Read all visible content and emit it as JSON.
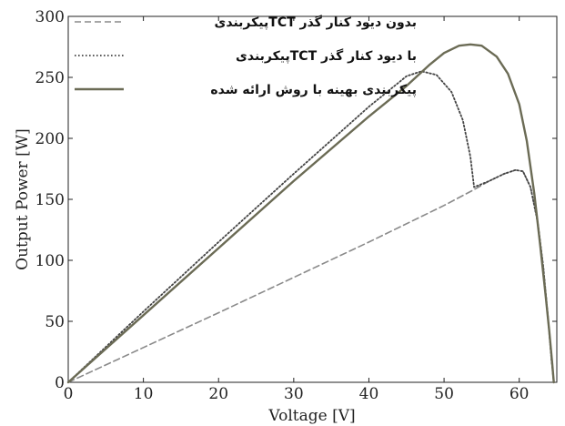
{
  "chart_data": {
    "type": "line",
    "xlabel": "Voltage [V]",
    "ylabel": "Output Power [W]",
    "xlim": [
      0,
      65
    ],
    "ylim": [
      0,
      300
    ],
    "xticks": [
      0,
      10,
      20,
      30,
      40,
      50,
      60
    ],
    "yticks": [
      0,
      50,
      100,
      150,
      200,
      250,
      300
    ],
    "grid": false,
    "legend_position": "top-left",
    "series": [
      {
        "name": "پیکربندیTCT بدون دیود کنار گذر",
        "style": "dashed",
        "color": "#8a8a8a",
        "x": [
          0,
          10,
          20,
          30,
          40,
          50,
          54,
          56,
          58,
          59.5,
          60.5,
          61.5,
          62.5,
          63.2,
          63.8,
          64.3,
          64.6
        ],
        "y": [
          0,
          28.5,
          57,
          86,
          115,
          145,
          158,
          165,
          171,
          174,
          173,
          160,
          130,
          95,
          55,
          18,
          0
        ]
      },
      {
        "name": "پیکربندیTCT با دیود کنار گذر",
        "style": "dotted",
        "color": "#444444",
        "x": [
          0,
          10,
          20,
          30,
          40,
          45,
          47,
          49,
          51,
          52.5,
          53.5,
          54,
          56,
          58,
          59.5,
          60.5,
          61.5,
          62.5,
          63.2,
          63.8,
          64.3,
          64.6
        ],
        "y": [
          0,
          58,
          115,
          171,
          226,
          251,
          255,
          252,
          238,
          215,
          185,
          160,
          165,
          171,
          174,
          173,
          160,
          130,
          95,
          55,
          18,
          0
        ]
      },
      {
        "name": "پیکربندی بهینه با روش ارائه شده",
        "style": "solid",
        "color": "#6b6b55",
        "x": [
          0,
          10,
          20,
          30,
          40,
          45,
          48,
          50,
          52,
          53.5,
          55,
          57,
          58.5,
          60,
          61,
          62,
          62.8,
          63.5,
          64,
          64.4,
          64.6
        ],
        "y": [
          0,
          55,
          110,
          165,
          218,
          243,
          260,
          270,
          276,
          277,
          276,
          267,
          253,
          228,
          198,
          155,
          112,
          72,
          42,
          15,
          0
        ]
      }
    ]
  }
}
